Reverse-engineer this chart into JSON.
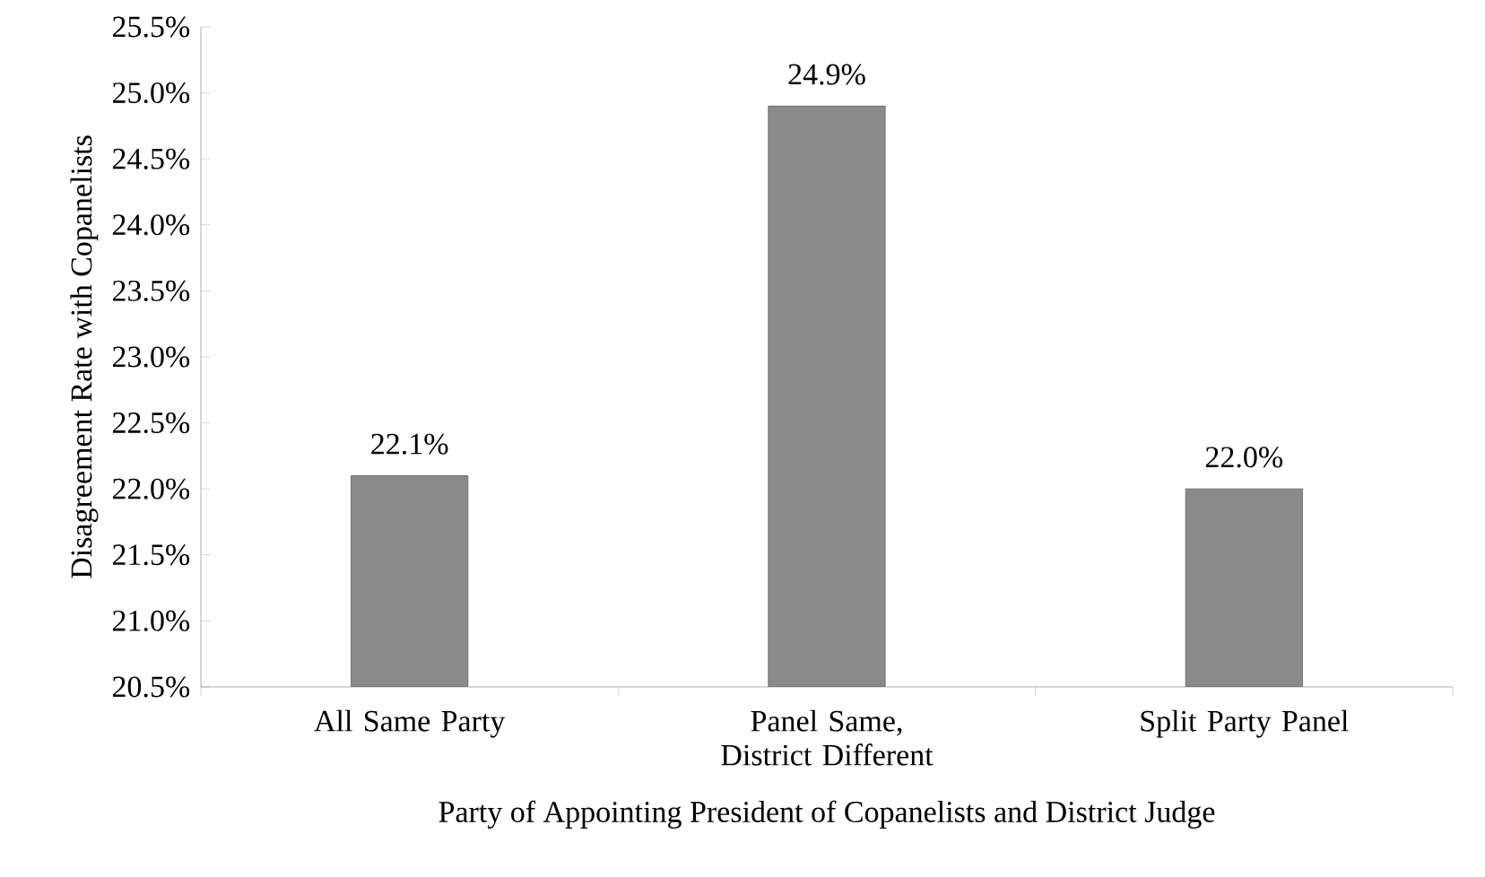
{
  "chart_data": {
    "type": "bar",
    "categories": [
      "All Same Party",
      "Panel Same, District Different",
      "Split Party Panel"
    ],
    "values": [
      22.1,
      24.9,
      22.0
    ],
    "value_labels": [
      "22.1%",
      "24.9%",
      "22.0%"
    ],
    "color": "#8a8a8a",
    "xlabel": "Party of Appointing President of Copanelists and District Judge",
    "ylabel": "Disagreement Rate with Copanelists",
    "ylim": [
      20.5,
      25.5
    ],
    "yticks": [
      {
        "value": 20.5,
        "label": "20.5%"
      },
      {
        "value": 21.0,
        "label": "21.0%"
      },
      {
        "value": 21.5,
        "label": "21.5%"
      },
      {
        "value": 22.0,
        "label": "22.0%"
      },
      {
        "value": 22.5,
        "label": "22.5%"
      },
      {
        "value": 23.0,
        "label": "23.0%"
      },
      {
        "value": 23.5,
        "label": "23.5%"
      },
      {
        "value": 24.0,
        "label": "24.0%"
      },
      {
        "value": 24.5,
        "label": "24.5%"
      },
      {
        "value": 25.0,
        "label": "25.0%"
      },
      {
        "value": 25.5,
        "label": "25.5%"
      }
    ],
    "grid": false
  }
}
